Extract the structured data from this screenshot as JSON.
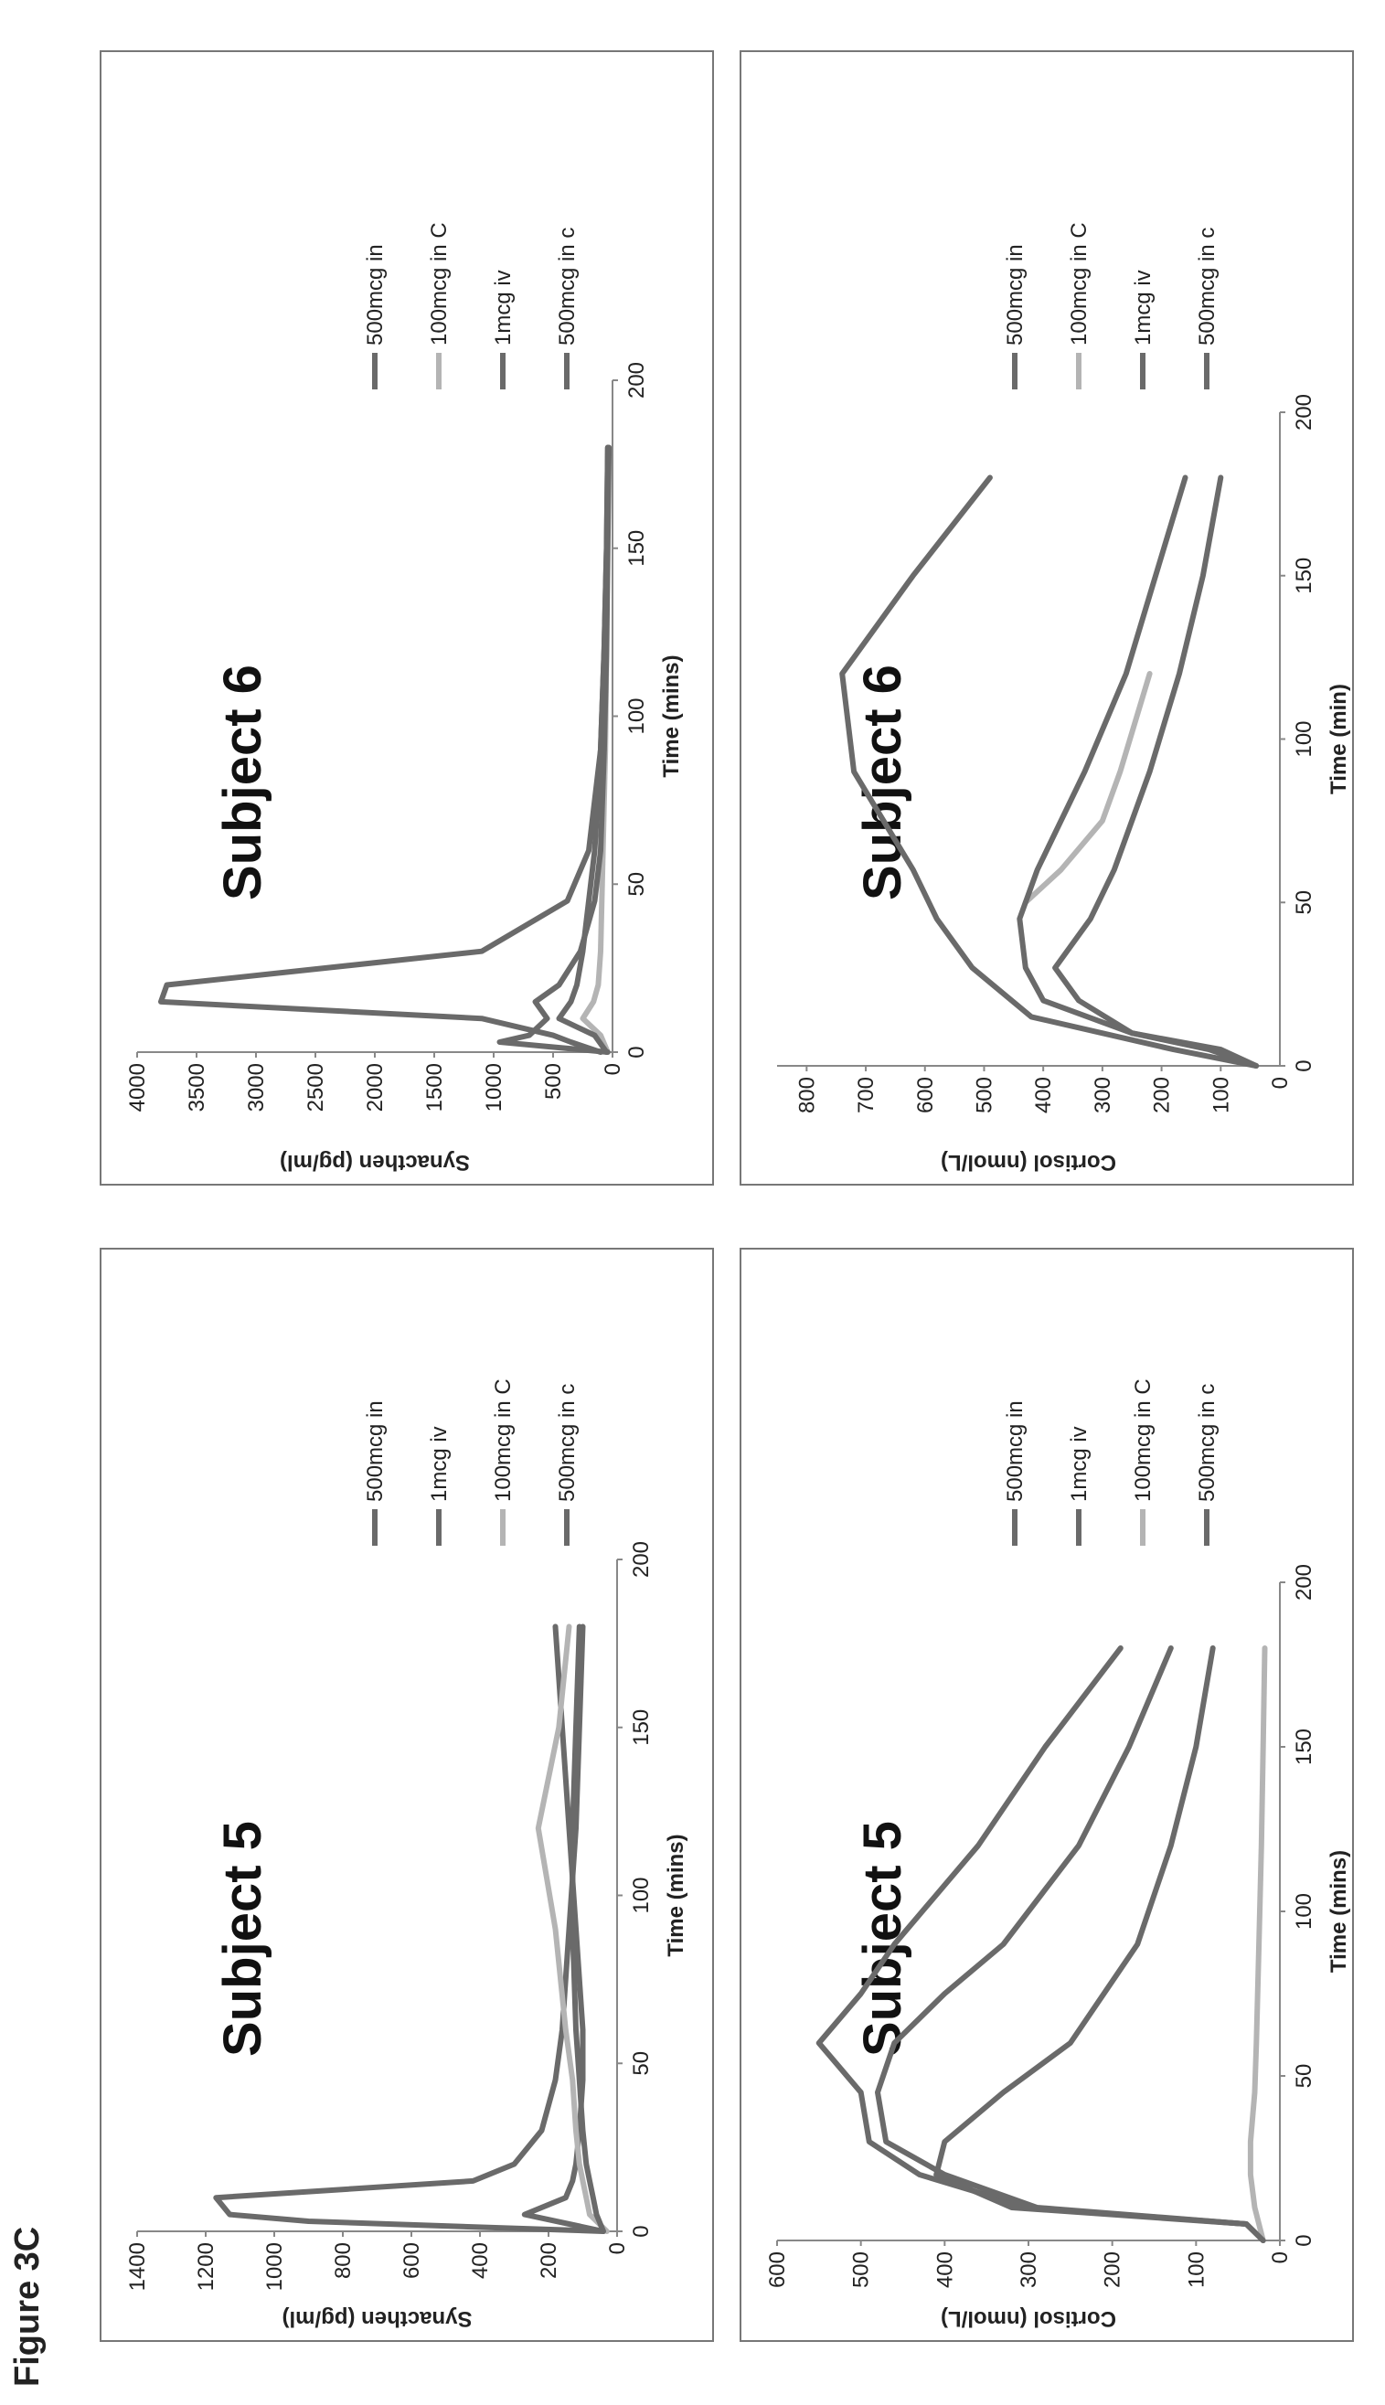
{
  "figure_title": "Figure 3C",
  "chart_data": [
    {
      "id": "syn5",
      "type": "line",
      "title": "Subject 5",
      "xlabel": "Time (mins)",
      "ylabel": "Synacthen (pg/ml)",
      "xlim": [
        0,
        200
      ],
      "ylim": [
        0,
        1400
      ],
      "xticks": [
        0,
        50,
        100,
        150,
        200
      ],
      "yticks": [
        0,
        200,
        400,
        600,
        800,
        1000,
        1200,
        1400
      ],
      "ytick_labels": [
        "0",
        "200",
        "400",
        "600",
        "800",
        "1000",
        "1200",
        "1400"
      ],
      "grid": false,
      "legend_position": "right",
      "series": [
        {
          "name": "500mcg in",
          "color": "#6a6a6a",
          "x": [
            0,
            5,
            10,
            15,
            20,
            30,
            45,
            60,
            90,
            120,
            150,
            180
          ],
          "y": [
            40,
            270,
            150,
            130,
            120,
            110,
            100,
            100,
            120,
            140,
            160,
            180
          ]
        },
        {
          "name": "1mcg iv",
          "color": "#6a6a6a",
          "x": [
            0,
            3,
            5,
            10,
            15,
            20,
            30,
            45,
            60,
            90,
            120,
            150,
            180
          ],
          "y": [
            40,
            900,
            1130,
            1170,
            420,
            300,
            220,
            180,
            160,
            140,
            120,
            110,
            100
          ]
        },
        {
          "name": "100mcg in C",
          "color": "#b4b4b4",
          "x": [
            0,
            5,
            10,
            15,
            20,
            30,
            45,
            60,
            90,
            120,
            150,
            180
          ],
          "y": [
            30,
            80,
            90,
            100,
            110,
            120,
            130,
            150,
            180,
            230,
            170,
            140
          ]
        },
        {
          "name": "500mcg in c",
          "color": "#6a6a6a",
          "x": [
            0,
            5,
            10,
            15,
            20,
            30,
            45,
            60,
            90,
            120,
            150,
            180
          ],
          "y": [
            40,
            60,
            70,
            80,
            90,
            100,
            110,
            120,
            130,
            130,
            120,
            110
          ]
        }
      ]
    },
    {
      "id": "cort5",
      "type": "line",
      "title": "Subject 5",
      "xlabel": "Time (mins)",
      "ylabel": "Cortisol (nmol/L)",
      "xlim": [
        0,
        200
      ],
      "ylim": [
        0,
        600
      ],
      "xticks": [
        0,
        50,
        100,
        150,
        200
      ],
      "yticks": [
        0,
        100,
        200,
        300,
        400,
        500,
        600
      ],
      "ytick_labels": [
        "0",
        "100",
        "200",
        "300",
        "400",
        "500",
        "600"
      ],
      "grid": false,
      "legend_position": "right",
      "series": [
        {
          "name": "500mcg in",
          "color": "#6a6a6a",
          "x": [
            0,
            5,
            10,
            20,
            30,
            45,
            60,
            75,
            90,
            120,
            150,
            180
          ],
          "y": [
            20,
            40,
            300,
            430,
            490,
            500,
            550,
            500,
            460,
            360,
            280,
            190
          ]
        },
        {
          "name": "1mcg iv",
          "color": "#6a6a6a",
          "x": [
            0,
            5,
            10,
            20,
            30,
            45,
            60,
            75,
            90,
            120,
            150,
            180
          ],
          "y": [
            20,
            40,
            290,
            400,
            470,
            480,
            460,
            400,
            330,
            240,
            180,
            130
          ]
        },
        {
          "name": "100mcg in C",
          "color": "#b4b4b4",
          "x": [
            0,
            5,
            10,
            20,
            30,
            45,
            60,
            90,
            120,
            150,
            180
          ],
          "y": [
            20,
            25,
            30,
            35,
            35,
            30,
            28,
            25,
            22,
            20,
            18
          ]
        },
        {
          "name": "500mcg in c",
          "color": "#6a6a6a",
          "x": [
            0,
            5,
            10,
            20,
            30,
            45,
            60,
            90,
            120,
            150,
            180
          ],
          "y": [
            20,
            40,
            320,
            410,
            400,
            330,
            250,
            170,
            130,
            100,
            80
          ]
        }
      ]
    },
    {
      "id": "syn6",
      "type": "line",
      "title": "Subject 6",
      "xlabel": "Time (mins)",
      "ylabel": "Synacthen (pg/ml)",
      "xlim": [
        0,
        200
      ],
      "ylim": [
        0,
        4000
      ],
      "xticks": [
        0,
        50,
        100,
        150,
        200
      ],
      "yticks": [
        0,
        500,
        1000,
        1500,
        2000,
        2500,
        3000,
        3500,
        4000
      ],
      "ytick_labels": [
        "0",
        "500",
        "1000",
        "1500",
        "2000",
        "2500",
        "3000",
        "3500",
        "4000"
      ],
      "grid": false,
      "legend_position": "right",
      "series": [
        {
          "name": "500mcg in",
          "color": "#6a6a6a",
          "x": [
            0,
            3,
            5,
            10,
            15,
            20,
            30,
            45,
            60,
            90,
            120,
            150,
            180
          ],
          "y": [
            100,
            350,
            500,
            1100,
            3800,
            3750,
            1100,
            380,
            200,
            100,
            70,
            50,
            40
          ]
        },
        {
          "name": "100mcg in C",
          "color": "#b4b4b4",
          "x": [
            0,
            5,
            10,
            15,
            20,
            30,
            45,
            60,
            90,
            120
          ],
          "y": [
            40,
            100,
            250,
            160,
            120,
            100,
            90,
            80,
            60,
            50
          ]
        },
        {
          "name": "1mcg iv",
          "color": "#6a6a6a",
          "x": [
            0,
            3,
            5,
            10,
            15,
            20,
            30,
            45,
            60,
            90,
            120,
            150,
            180
          ],
          "y": [
            40,
            950,
            700,
            550,
            650,
            450,
            270,
            150,
            100,
            70,
            50,
            40,
            30
          ]
        },
        {
          "name": "500mcg in c",
          "color": "#6a6a6a",
          "x": [
            0,
            5,
            10,
            15,
            20,
            30,
            45,
            60,
            90,
            120,
            150,
            180
          ],
          "y": [
            50,
            150,
            450,
            350,
            300,
            250,
            200,
            150,
            100,
            70,
            50,
            40
          ]
        }
      ]
    },
    {
      "id": "cort6",
      "type": "line",
      "title": "Subject 6",
      "xlabel": "Time (min)",
      "ylabel": "Cortisol (nmol/L)",
      "xlim": [
        0,
        200
      ],
      "ylim": [
        0,
        850
      ],
      "xticks": [
        0,
        50,
        100,
        150,
        200
      ],
      "yticks": [
        100,
        200,
        300,
        400,
        500,
        600,
        700,
        800
      ],
      "ytick_labels": [
        "100",
        "200",
        "300",
        "400",
        "500",
        "600",
        "700",
        "800"
      ],
      "zero_tick_label": "0",
      "grid": false,
      "legend_position": "right",
      "series": [
        {
          "name": "500mcg in",
          "color": "#6a6a6a",
          "x": [
            0,
            5,
            15,
            30,
            45,
            60,
            75,
            90,
            120,
            150,
            180
          ],
          "y": [
            40,
            180,
            420,
            520,
            580,
            620,
            670,
            720,
            740,
            620,
            490
          ]
        },
        {
          "name": "100mcg in C",
          "color": "#b4b4b4",
          "x": [
            50,
            60,
            75,
            90,
            120
          ],
          "y": [
            430,
            370,
            300,
            270,
            220
          ]
        },
        {
          "name": "1mcg iv",
          "color": "#6a6a6a",
          "x": [
            0,
            5,
            10,
            20,
            30,
            45,
            60,
            90,
            120,
            150,
            180
          ],
          "y": [
            40,
            100,
            250,
            400,
            430,
            440,
            410,
            330,
            260,
            210,
            160
          ]
        },
        {
          "name": "500mcg in c",
          "color": "#6a6a6a",
          "x": [
            0,
            5,
            10,
            20,
            30,
            45,
            60,
            90,
            120,
            150,
            180
          ],
          "y": [
            40,
            120,
            250,
            340,
            380,
            320,
            280,
            220,
            170,
            130,
            100
          ]
        }
      ]
    }
  ]
}
